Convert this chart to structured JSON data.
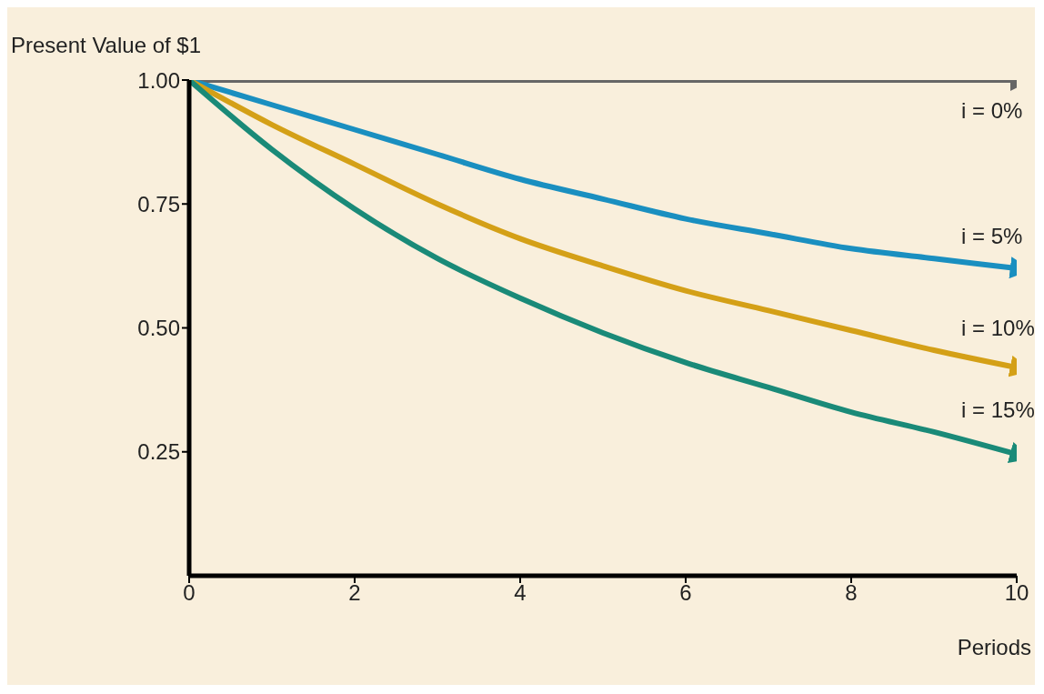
{
  "chart_data": {
    "type": "line",
    "ylabel": "Present Value of $1",
    "xlabel": "Periods",
    "x": [
      0,
      1,
      2,
      3,
      4,
      5,
      6,
      7,
      8,
      9,
      10
    ],
    "xlim": [
      0,
      10
    ],
    "xticks": [
      0,
      2,
      4,
      6,
      8,
      10
    ],
    "ylim": [
      0,
      1
    ],
    "yticks": [
      {
        "value": 0.25,
        "label": "0.25"
      },
      {
        "value": 0.5,
        "label": "0.50"
      },
      {
        "value": 0.75,
        "label": "0.75"
      },
      {
        "value": 1,
        "label": "1.00"
      }
    ],
    "grid": false,
    "marker": "none",
    "line_style": "solid",
    "series": [
      {
        "name": "i = 0%",
        "color": "#666666",
        "values": [
          1,
          1,
          1,
          1,
          1,
          1,
          1,
          1,
          1,
          1,
          1
        ]
      },
      {
        "name": "i = 5%",
        "color": "#1a8fc0",
        "values": [
          1,
          0.95,
          0.9,
          0.85,
          0.8,
          0.76,
          0.72,
          0.69,
          0.66,
          0.64,
          0.62
        ]
      },
      {
        "name": "i = 10%",
        "color": "#d4a017",
        "values": [
          1,
          0.91,
          0.83,
          0.75,
          0.68,
          0.625,
          0.575,
          0.535,
          0.495,
          0.455,
          0.42
        ]
      },
      {
        "name": "i = 15%",
        "color": "#1a8a78",
        "values": [
          1,
          0.86,
          0.74,
          0.64,
          0.56,
          0.49,
          0.43,
          0.38,
          0.33,
          0.29,
          0.245
        ]
      }
    ]
  }
}
